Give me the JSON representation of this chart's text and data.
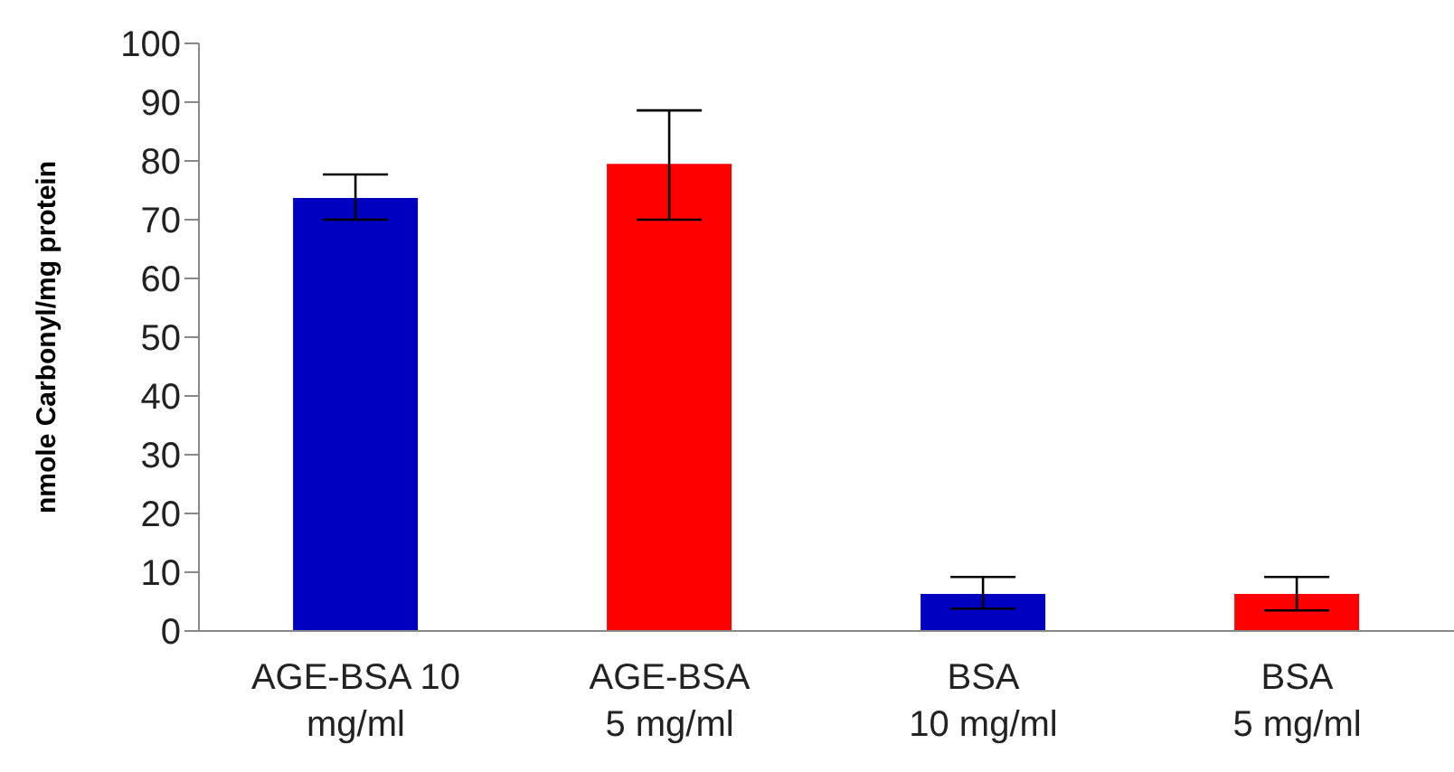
{
  "chart_data": {
    "type": "bar",
    "ylabel": "nmole  Carbonyl/mg  protein",
    "categories": [
      "AGE-BSA 10\nmg/ml",
      "AGE-BSA\n5 mg/ml",
      "BSA\n10 mg/ml",
      "BSA\n5 mg/ml"
    ],
    "values": [
      73.7,
      79.5,
      6.3,
      6.3
    ],
    "colors": [
      "#0000c0",
      "#ff0000",
      "#0000c0",
      "#ff0000"
    ],
    "errors": [
      [
        70,
        77.7
      ],
      [
        70,
        88.6
      ],
      [
        3.8,
        9.2
      ],
      [
        3.5,
        9.2
      ]
    ],
    "ylim": [
      0,
      100
    ],
    "yticks": [
      0,
      10,
      20,
      30,
      40,
      50,
      60,
      70,
      80,
      90,
      100
    ],
    "grid": false,
    "legend": false
  }
}
